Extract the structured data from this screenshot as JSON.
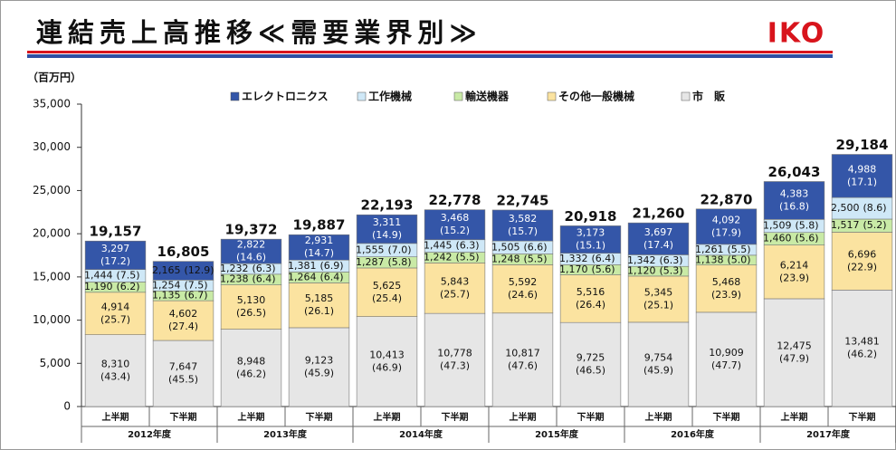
{
  "title": "連結売上高推移≪需要業界別≫",
  "logo": "IKO",
  "chart_data": {
    "type": "stacked_bar",
    "unit_label": "（百万円）",
    "categories": [
      "上半期",
      "下半期",
      "上半期",
      "下半期",
      "上半期",
      "下半期",
      "上半期",
      "下半期",
      "上半期",
      "下半期",
      "上半期",
      "下半期"
    ],
    "years": [
      "2012年度",
      "2013年度",
      "2014年度",
      "2015年度",
      "2016年度",
      "2017年度"
    ],
    "ylim": [
      0,
      35000
    ],
    "yticks": [
      0,
      {
        "value": 5000,
        "label": "5,000"
      },
      {
        "value": 10000,
        "label": "10,000"
      },
      {
        "value": 15000,
        "label": "15,000"
      },
      {
        "value": 20000,
        "label": "20,000"
      },
      {
        "value": 25000,
        "label": "25,000"
      },
      {
        "value": 30000,
        "label": "30,000"
      },
      {
        "value": 35000,
        "label": "35,000"
      }
    ],
    "series": [
      {
        "name": "市　販",
        "color": "#e6e6e6",
        "values": [
          8310,
          7647,
          8948,
          9123,
          10413,
          10778,
          10817,
          9725,
          9754,
          10909,
          12475,
          13481
        ],
        "value_labels": [
          "8,310",
          "7,647",
          "8,948",
          "9,123",
          "10,413",
          "10,778",
          "10,817",
          "9,725",
          "9,754",
          "10,909",
          "12,475",
          "13,481"
        ],
        "shares": [
          43.4,
          45.5,
          46.2,
          45.9,
          46.9,
          47.3,
          47.6,
          46.5,
          45.9,
          47.7,
          47.9,
          46.2
        ],
        "share_labels": [
          "(43.4)",
          "(45.5)",
          "(46.2)",
          "(45.9)",
          "(46.9)",
          "(47.3)",
          "(47.6)",
          "(46.5)",
          "(45.9)",
          "(47.7)",
          "(47.9)",
          "(46.2)"
        ]
      },
      {
        "name": "その他一般機械",
        "color": "#fbe3a0",
        "values": [
          4914,
          4602,
          5130,
          5185,
          5625,
          5843,
          5592,
          5516,
          5345,
          5468,
          6214,
          6696
        ],
        "value_labels": [
          "4,914",
          "4,602",
          "5,130",
          "5,185",
          "5,625",
          "5,843",
          "5,592",
          "5,516",
          "5,345",
          "5,468",
          "6,214",
          "6,696"
        ],
        "shares": [
          25.7,
          27.4,
          26.5,
          26.1,
          25.4,
          25.7,
          24.6,
          26.4,
          25.1,
          23.9,
          23.9,
          22.9
        ],
        "share_labels": [
          "(25.7)",
          "(27.4)",
          "(26.5)",
          "(26.1)",
          "(25.4)",
          "(25.7)",
          "(24.6)",
          "(26.4)",
          "(25.1)",
          "(23.9)",
          "(23.9)",
          "(22.9)"
        ]
      },
      {
        "name": "輸送機器",
        "color": "#c9eaa6",
        "values": [
          1190,
          1135,
          1238,
          1264,
          1287,
          1242,
          1248,
          1170,
          1120,
          1138,
          1460,
          1517
        ],
        "value_labels": [
          "1,190",
          "1,135",
          "1,238",
          "1,264",
          "1,287",
          "1,242",
          "1,248",
          "1,170",
          "1,120",
          "1,138",
          "1,460",
          "1,517"
        ],
        "shares": [
          6.2,
          6.7,
          6.4,
          6.4,
          5.8,
          5.5,
          5.5,
          5.6,
          5.3,
          5.0,
          5.6,
          5.2
        ],
        "share_labels": [
          "(6.2)",
          "(6.7)",
          "(6.4)",
          "(6.4)",
          "(5.8)",
          "(5.5)",
          "(5.5)",
          "(5.6)",
          "(5.3)",
          "(5.0)",
          "(5.6)",
          "(5.2)"
        ]
      },
      {
        "name": "工作機械",
        "color": "#cfe8f7",
        "values": [
          1444,
          1254,
          1232,
          1381,
          1555,
          1445,
          1505,
          1332,
          1342,
          1261,
          1509,
          2500
        ],
        "value_labels": [
          "1,444",
          "1,254",
          "1,232",
          "1,381",
          "1,555",
          "1,445",
          "1,505",
          "1,332",
          "1,342",
          "1,261",
          "1,509",
          "2,500"
        ],
        "shares": [
          7.5,
          7.5,
          6.3,
          6.9,
          7.0,
          6.3,
          6.6,
          6.4,
          6.3,
          5.5,
          5.8,
          8.6
        ],
        "share_labels": [
          "(7.5)",
          "(7.5)",
          "(6.3)",
          "(6.9)",
          "(7.0)",
          "(6.3)",
          "(6.6)",
          "(6.4)",
          "(6.3)",
          "(5.5)",
          "(5.8)",
          "(8.6)"
        ]
      },
      {
        "name": "エレクトロニクス",
        "color": "#3456a8",
        "values": [
          3297,
          2165,
          2822,
          2931,
          3311,
          3468,
          3582,
          3173,
          3697,
          4092,
          4383,
          4988
        ],
        "value_labels": [
          "3,297",
          "2,165",
          "2,822",
          "2,931",
          "3,311",
          "3,468",
          "3,582",
          "3,173",
          "3,697",
          "4,092",
          "4,383",
          "4,988"
        ],
        "shares": [
          17.2,
          12.9,
          14.6,
          14.7,
          14.9,
          15.2,
          15.7,
          15.1,
          17.4,
          17.9,
          16.8,
          17.1
        ],
        "share_labels": [
          "(17.2)",
          "(12.9)",
          "(14.6)",
          "(14.7)",
          "(14.9)",
          "(15.2)",
          "(15.7)",
          "(15.1)",
          "(17.4)",
          "(17.9)",
          "(16.8)",
          "(17.1)"
        ]
      }
    ],
    "legend_order": [
      4,
      3,
      2,
      1,
      0
    ],
    "totals": [
      19157,
      16805,
      19372,
      19887,
      22193,
      22778,
      22745,
      20918,
      21260,
      22870,
      26043,
      29184
    ],
    "total_labels": [
      "19,157",
      "16,805",
      "19,372",
      "19,887",
      "22,193",
      "22,778",
      "22,745",
      "20,918",
      "21,260",
      "22,870",
      "26,043",
      "29,184"
    ]
  }
}
